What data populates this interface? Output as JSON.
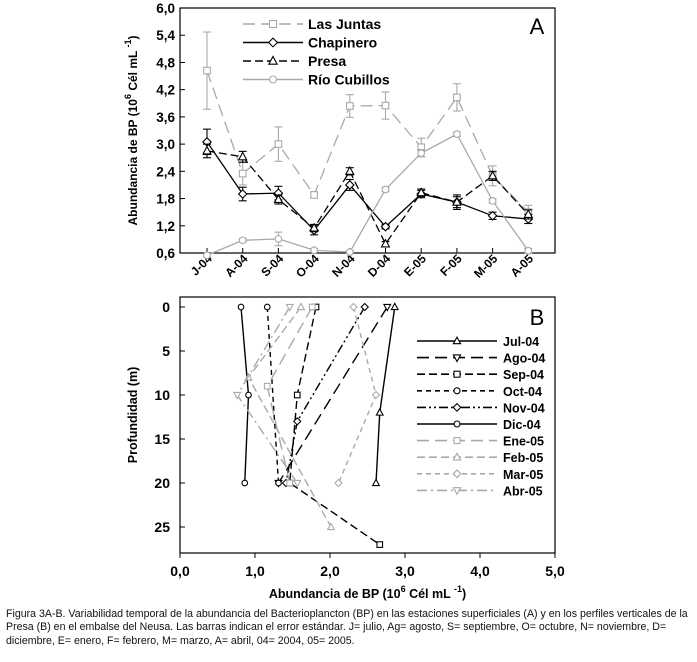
{
  "chart_data": [
    {
      "type": "line",
      "panel_label": "A",
      "ylabel": "Abundancia de BP",
      "ylabel_unit": "(10",
      "ylabel_exp": "6",
      "ylabel_unit_tail": "Cél  mL",
      "ylabel_unit_exp": "-1",
      "ylabel_unit_close": ")",
      "ylim": [
        0.6,
        6.0
      ],
      "y_ticks": [
        "0,6",
        "1,2",
        "1,8",
        "2,4",
        "3,0",
        "3,6",
        "4,2",
        "4,8",
        "5,4",
        "6,0"
      ],
      "categories": [
        "J-04",
        "A-04",
        "S-04",
        "O-04",
        "N-04",
        "D-04",
        "E-05",
        "F-05",
        "M-05",
        "A-05"
      ],
      "legend_position": "top-left",
      "grid": false,
      "series": [
        {
          "name": "Las Juntas",
          "color": "#a9a9a9",
          "dash": "long-dash",
          "marker": "square",
          "values": [
            4.62,
            2.35,
            3.0,
            1.88,
            3.84,
            3.85,
            2.93,
            4.03,
            2.3,
            1.5
          ],
          "errors": [
            0.85,
            0.25,
            0.38,
            0.05,
            0.25,
            0.3,
            0.2,
            0.3,
            0.22,
            0.15
          ]
        },
        {
          "name": "Chapinero",
          "color": "#000000",
          "dash": "solid",
          "marker": "diamond",
          "values": [
            3.05,
            1.9,
            1.92,
            1.1,
            2.1,
            1.18,
            1.9,
            1.72,
            1.42,
            1.35
          ],
          "errors": [
            0.28,
            0.15,
            0.15,
            0.1,
            0.12,
            0.05,
            0.08,
            0.16,
            0.08,
            0.1
          ]
        },
        {
          "name": "Presa",
          "color": "#000000",
          "dash": "dash",
          "marker": "triangle",
          "values": [
            2.85,
            2.72,
            1.78,
            1.15,
            2.4,
            0.8,
            1.93,
            1.72,
            2.3,
            1.45
          ],
          "errors": [
            0.15,
            0.12,
            0.1,
            0.08,
            0.08,
            0.05,
            0.08,
            0.12,
            0.1,
            0.1
          ]
        },
        {
          "name": "Río Cubillos",
          "color": "#a9a9a9",
          "dash": "solid",
          "marker": "circle",
          "values": [
            0.55,
            0.88,
            0.91,
            0.66,
            0.62,
            2.0,
            2.8,
            3.22,
            1.75,
            0.65
          ],
          "errors": [
            0.03,
            0.04,
            0.15,
            0.04,
            0.03,
            0.05,
            0.08,
            0.05,
            0.05,
            0.05
          ]
        }
      ]
    },
    {
      "type": "line",
      "panel_label": "B",
      "xlabel": "Abundancia de BP",
      "xlabel_unit": "(10",
      "xlabel_exp": "6",
      "xlabel_unit_tail": "Cél  mL",
      "xlabel_unit_exp": "-1",
      "xlabel_unit_close": ")",
      "ylabel": "Profundidad   (m)",
      "xlim": [
        0,
        5
      ],
      "ylim": [
        28,
        -1
      ],
      "x_ticks": [
        "0,0",
        "1,0",
        "2,0",
        "3,0",
        "4,0",
        "5,0"
      ],
      "y_ticks": [
        "0",
        "5",
        "10",
        "15",
        "20",
        "25"
      ],
      "legend_position": "right",
      "grid": false,
      "series": [
        {
          "name": "Jul-04",
          "color": "#000000",
          "dash": "solid",
          "marker": "triangle",
          "points": [
            [
              2.85,
              0
            ],
            [
              2.65,
              12
            ],
            [
              2.6,
              20
            ]
          ]
        },
        {
          "name": "Ago-04",
          "color": "#000000",
          "dash": "long-dash",
          "marker": "tri-down",
          "points": [
            [
              2.75,
              0
            ],
            [
              1.3,
              20
            ]
          ]
        },
        {
          "name": "Sep-04",
          "color": "#000000",
          "dash": "dash",
          "marker": "square",
          "points": [
            [
              1.8,
              0
            ],
            [
              1.55,
              10
            ],
            [
              1.45,
              20
            ],
            [
              2.65,
              27
            ]
          ]
        },
        {
          "name": "Oct-04",
          "color": "#000000",
          "dash": "short-dash",
          "marker": "circle",
          "points": [
            [
              1.15,
              0
            ],
            [
              1.3,
              20
            ]
          ]
        },
        {
          "name": "Nov-04",
          "color": "#000000",
          "dash": "dash-dot-dot",
          "marker": "diamond",
          "points": [
            [
              2.45,
              0
            ],
            [
              1.55,
              13
            ],
            [
              1.4,
              20
            ]
          ]
        },
        {
          "name": "Dic-04",
          "color": "#000000",
          "dash": "solid",
          "marker": "circle",
          "points": [
            [
              0.8,
              0
            ],
            [
              0.9,
              10
            ],
            [
              0.85,
              20
            ]
          ]
        },
        {
          "name": "Ene-05",
          "color": "#a9a9a9",
          "dash": "long-dash",
          "marker": "square",
          "points": [
            [
              1.75,
              0
            ],
            [
              1.15,
              9
            ],
            [
              1.45,
              20
            ]
          ]
        },
        {
          "name": "Feb-05",
          "color": "#a9a9a9",
          "dash": "dash",
          "marker": "triangle",
          "points": [
            [
              1.6,
              0
            ],
            [
              0.9,
              8
            ],
            [
              2.0,
              25
            ]
          ]
        },
        {
          "name": "Mar-05",
          "color": "#a9a9a9",
          "dash": "short-dash",
          "marker": "diamond",
          "points": [
            [
              2.3,
              0
            ],
            [
              2.6,
              10
            ],
            [
              2.1,
              20
            ]
          ]
        },
        {
          "name": "Abr-05",
          "color": "#a9a9a9",
          "dash": "dash-dot",
          "marker": "tri-down",
          "points": [
            [
              1.45,
              0
            ],
            [
              0.75,
              10
            ],
            [
              1.55,
              20
            ]
          ]
        }
      ]
    }
  ],
  "caption": "Figura 3A-B. Variabilidad temporal de la abundancia del Bacterioplancton (BP) en las estaciones superficiales (A) y en los perfiles verticales de la Presa (B) en el embalse del Neusa. Las barras indican el error estándar. J= julio, Ag= agosto, S= septiembre, O= octubre, N= noviembre, D= diciembre, E= enero, F= febrero, M= marzo, A= abril, 04= 2004, 05= 2005."
}
